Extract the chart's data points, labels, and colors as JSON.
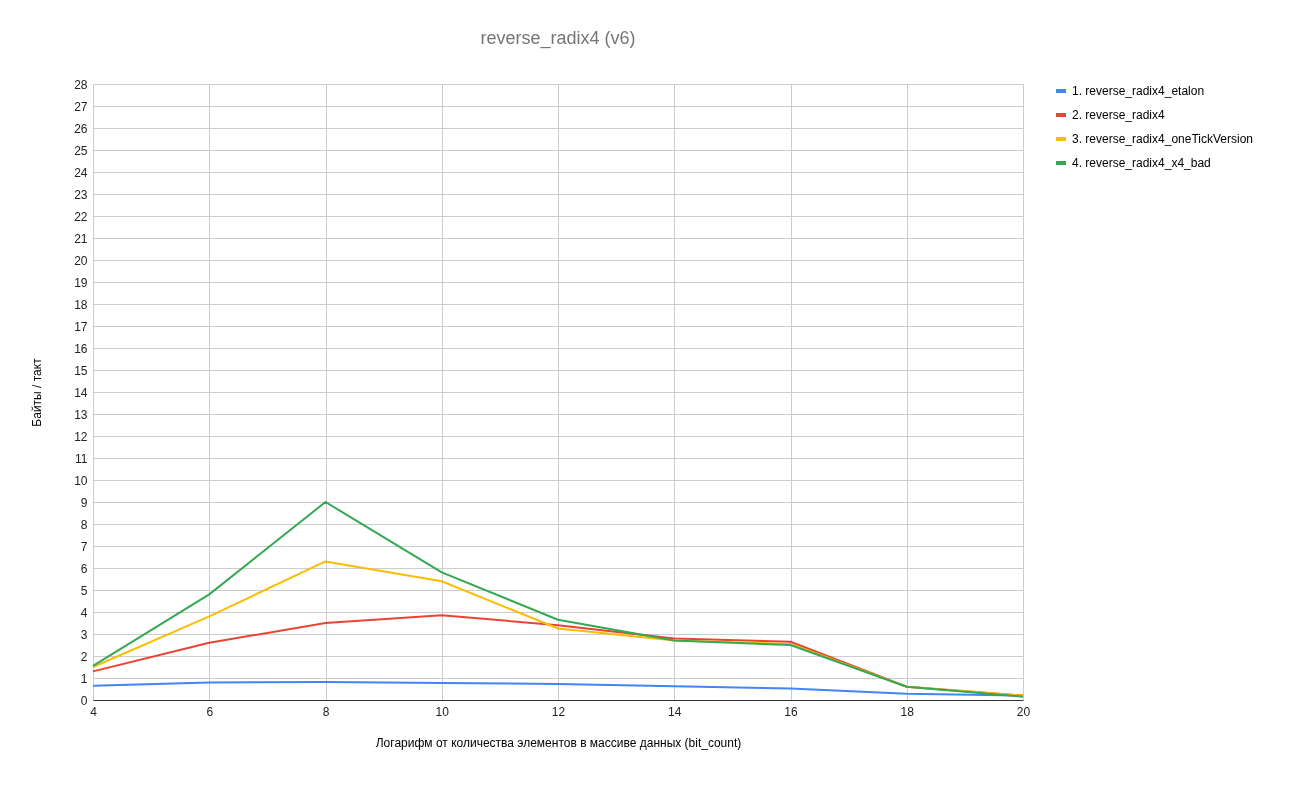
{
  "chart_data": {
    "type": "line",
    "title": "reverse_radix4 (v6)",
    "xlabel": "Логарифм от количества элементов в массиве данных (bit_count)",
    "ylabel": "Байты / такт",
    "x": [
      4,
      6,
      8,
      10,
      12,
      14,
      16,
      18,
      20
    ],
    "series": [
      {
        "name": "1. reverse_radix4_etalon",
        "color": "#4285f4",
        "values": [
          0.65,
          0.8,
          0.82,
          0.77,
          0.73,
          0.62,
          0.52,
          0.28,
          0.2
        ]
      },
      {
        "name": "2. reverse_radix4",
        "color": "#ea4335",
        "values": [
          1.3,
          2.6,
          3.5,
          3.85,
          3.4,
          2.8,
          2.65,
          0.6,
          0.2
        ]
      },
      {
        "name": "3. reverse_radix4_oneTickVersion",
        "color": "#fbbc04",
        "values": [
          1.5,
          3.8,
          6.3,
          5.4,
          3.25,
          2.7,
          2.55,
          0.6,
          0.2
        ]
      },
      {
        "name": "4. reverse_radix4_x4_bad",
        "color": "#34a853",
        "values": [
          1.55,
          4.8,
          9.0,
          5.8,
          3.65,
          2.7,
          2.5,
          0.6,
          0.15
        ]
      }
    ],
    "xlim": [
      4,
      20
    ],
    "xticks": [
      4,
      6,
      8,
      10,
      12,
      14,
      16,
      18,
      20
    ],
    "ylim": [
      0,
      28
    ],
    "yticks": [
      0,
      1,
      2,
      3,
      4,
      5,
      6,
      7,
      8,
      9,
      10,
      11,
      12,
      13,
      14,
      15,
      16,
      17,
      18,
      19,
      20,
      21,
      22,
      23,
      24,
      25,
      26,
      27,
      28
    ],
    "grid": true,
    "legend": "top right",
    "marker": "none",
    "line_style": "solid"
  }
}
